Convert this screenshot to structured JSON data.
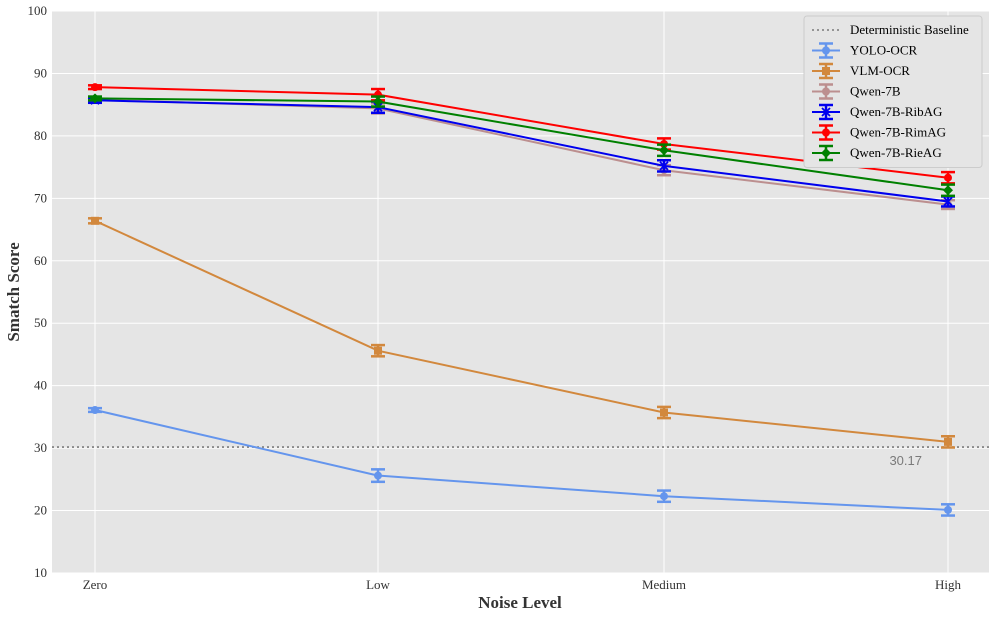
{
  "chart_data": {
    "type": "line",
    "title": "",
    "xlabel": "Noise Level",
    "ylabel": "Smatch Score",
    "categories": [
      "Zero",
      "Low",
      "Medium",
      "High"
    ],
    "ylim": [
      10,
      100
    ],
    "yticks": [
      10,
      20,
      30,
      40,
      50,
      60,
      70,
      80,
      90,
      100
    ],
    "grid": true,
    "legend_position": "top-right",
    "baseline": {
      "name": "Deterministic Baseline",
      "value": 30.17,
      "label": "30.17",
      "color": "#7a7a7a"
    },
    "series": [
      {
        "name": "YOLO-OCR",
        "color": "#6495ED",
        "marker": "circle",
        "values": [
          36.1,
          25.6,
          22.3,
          20.1
        ],
        "errors": [
          0.3,
          1.0,
          0.9,
          0.9
        ]
      },
      {
        "name": "VLM-OCR",
        "color": "#D2883D",
        "marker": "square",
        "values": [
          66.4,
          45.6,
          35.7,
          31.0
        ],
        "errors": [
          0.4,
          0.9,
          0.9,
          0.9
        ]
      },
      {
        "name": "Qwen-7B",
        "color": "#BC8F8F",
        "marker": "circle",
        "values": [
          85.8,
          84.4,
          74.5,
          69.0
        ],
        "errors": [
          0.4,
          0.8,
          0.8,
          0.7
        ]
      },
      {
        "name": "Qwen-7B-RibAG",
        "color": "#0000EE",
        "marker": "x",
        "values": [
          85.7,
          84.6,
          75.2,
          69.5
        ],
        "errors": [
          0.4,
          0.9,
          0.9,
          0.8
        ]
      },
      {
        "name": "Qwen-7B-RimAG",
        "color": "#FF0000",
        "marker": "circle",
        "values": [
          87.8,
          86.6,
          78.7,
          73.3
        ],
        "errors": [
          0.3,
          0.9,
          0.9,
          0.9
        ]
      },
      {
        "name": "Qwen-7B-RieAG",
        "color": "#008000",
        "marker": "diamond",
        "values": [
          86.0,
          85.5,
          77.7,
          71.3
        ],
        "errors": [
          0.3,
          0.8,
          0.9,
          0.9
        ]
      }
    ]
  }
}
